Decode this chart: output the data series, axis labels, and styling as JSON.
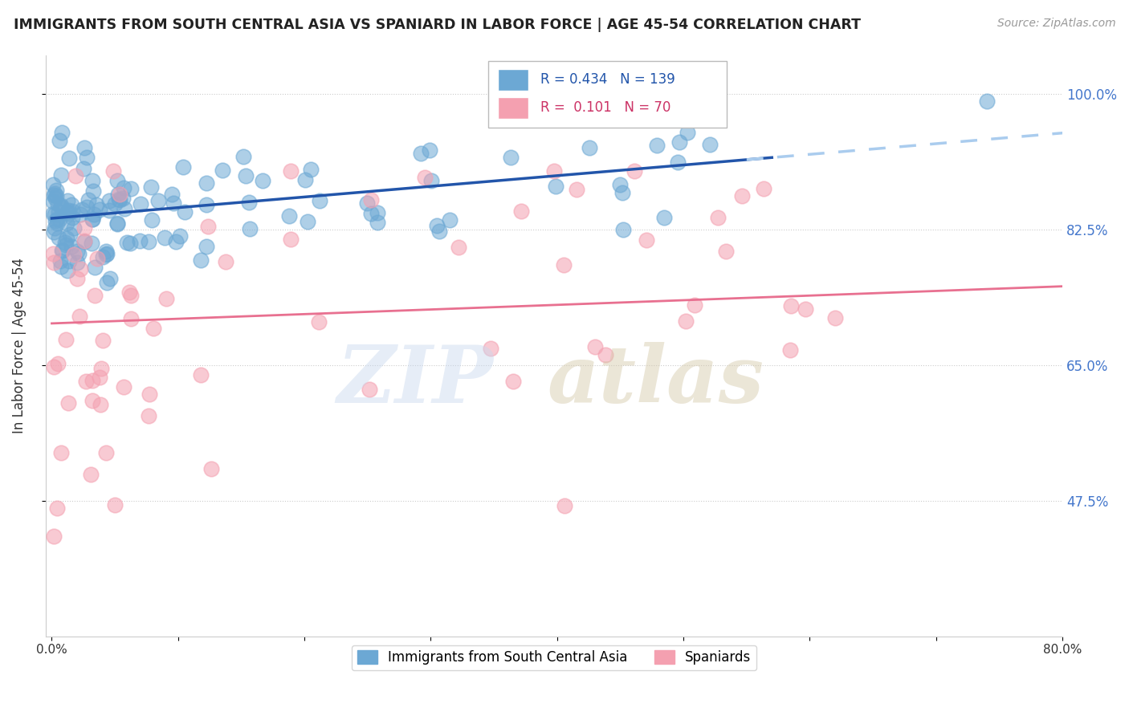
{
  "title": "IMMIGRANTS FROM SOUTH CENTRAL ASIA VS SPANIARD IN LABOR FORCE | AGE 45-54 CORRELATION CHART",
  "source": "Source: ZipAtlas.com",
  "ylabel": "In Labor Force | Age 45-54",
  "xlim": [
    -0.005,
    0.8
  ],
  "ylim": [
    0.3,
    1.05
  ],
  "ytick_vals": [
    0.475,
    0.65,
    0.825,
    1.0
  ],
  "ytick_labels": [
    "47.5%",
    "65.0%",
    "82.5%",
    "100.0%"
  ],
  "xtick_vals": [
    0.0,
    0.1,
    0.2,
    0.3,
    0.4,
    0.5,
    0.6,
    0.7,
    0.8
  ],
  "xtick_labels": [
    "0.0%",
    "",
    "",
    "",
    "",
    "",
    "",
    "",
    "80.0%"
  ],
  "blue_R": 0.434,
  "blue_N": 139,
  "pink_R": 0.101,
  "pink_N": 70,
  "blue_color": "#6ca8d4",
  "pink_color": "#f4a0b0",
  "blue_line_color": "#2255aa",
  "pink_line_color": "#e87090",
  "dashed_line_color": "#aaccee",
  "legend_label_blue": "Immigrants from South Central Asia",
  "legend_label_pink": "Spaniards"
}
